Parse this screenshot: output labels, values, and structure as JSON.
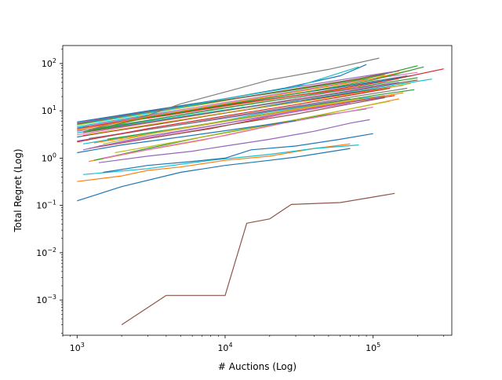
{
  "chart_data": {
    "type": "line",
    "title": "",
    "xlabel": "# Auctions (Log)",
    "ylabel": "Total Regret (Log)",
    "xscale": "log",
    "yscale": "log",
    "xlim": [
      800,
      340000
    ],
    "ylim": [
      0.00018,
      240
    ],
    "grid": false,
    "legend": "none",
    "x_ticks": [
      {
        "value": 1000,
        "base": "10",
        "exp": "3"
      },
      {
        "value": 10000,
        "base": "10",
        "exp": "4"
      },
      {
        "value": 100000,
        "base": "10",
        "exp": "5"
      }
    ],
    "y_ticks": [
      {
        "value": 0.001,
        "base": "10",
        "exp": "−3"
      },
      {
        "value": 0.01,
        "base": "10",
        "exp": "−2"
      },
      {
        "value": 0.1,
        "base": "10",
        "exp": "−1"
      },
      {
        "value": 1,
        "base": "10",
        "exp": "0"
      },
      {
        "value": 10,
        "base": "10",
        "exp": "1"
      },
      {
        "value": 100,
        "base": "10",
        "exp": "2"
      }
    ],
    "colors": [
      "#1f77b4",
      "#ff7f0e",
      "#2ca02c",
      "#d62728",
      "#9467bd",
      "#8c564b",
      "#e377c2",
      "#7f7f7f",
      "#bcbd22",
      "#17becf"
    ],
    "series": [
      {
        "color": "#8c564b",
        "x": [
          2000,
          4000,
          10000,
          14000,
          20000,
          28000,
          60000,
          100000,
          140000
        ],
        "y": [
          0.0003,
          0.00125,
          0.00125,
          0.042,
          0.052,
          0.105,
          0.115,
          0.15,
          0.18
        ]
      },
      {
        "color": "#1f77b4",
        "x": [
          1000,
          2000,
          5000,
          10000,
          20000,
          30000,
          70000
        ],
        "y": [
          0.125,
          0.25,
          0.5,
          0.7,
          0.9,
          1.05,
          1.6
        ]
      },
      {
        "color": "#ff7f0e",
        "x": [
          1000,
          2000,
          3000,
          5000,
          10000,
          20000,
          40000,
          70000
        ],
        "y": [
          0.32,
          0.42,
          0.55,
          0.65,
          0.9,
          1.1,
          1.6,
          2.0
        ]
      },
      {
        "color": "#17becf",
        "x": [
          1100,
          3000,
          8000,
          20000,
          40000,
          80000
        ],
        "y": [
          0.45,
          0.6,
          0.9,
          1.2,
          1.6,
          1.9
        ]
      },
      {
        "color": "#1f77b4",
        "x": [
          1500,
          3000,
          6000,
          10000,
          15000,
          30000,
          60000,
          100000
        ],
        "y": [
          0.5,
          0.7,
          0.85,
          1.0,
          1.5,
          1.8,
          2.5,
          3.3
        ]
      },
      {
        "color": "#9467bd",
        "x": [
          1400,
          3000,
          6000,
          10000,
          20000,
          40000,
          70000,
          95000
        ],
        "y": [
          0.8,
          1.1,
          1.4,
          1.8,
          2.5,
          3.7,
          5.5,
          6.5
        ]
      },
      {
        "color": "#ff7f0e",
        "x": [
          1200,
          3000,
          7000,
          15000,
          35000,
          80000,
          150000
        ],
        "y": [
          0.85,
          1.5,
          2.4,
          4.0,
          7.0,
          12.0,
          18.0
        ]
      },
      {
        "color": "#2ca02c",
        "x": [
          1300,
          3000,
          7000,
          15000,
          40000,
          90000
        ],
        "y": [
          0.9,
          1.6,
          2.8,
          4.3,
          7.5,
          11.0
        ]
      },
      {
        "color": "#e377c2",
        "x": [
          1500,
          4000,
          10000,
          25000,
          60000,
          100000
        ],
        "y": [
          1.0,
          1.8,
          3.0,
          5.5,
          9.0,
          12.0
        ]
      },
      {
        "color": "#bcbd22",
        "x": [
          1800,
          5000,
          12000,
          30000,
          70000,
          130000
        ],
        "y": [
          1.3,
          2.3,
          3.9,
          6.5,
          11.0,
          16.0
        ]
      },
      {
        "color": "#1f77b4",
        "x": [
          1000,
          2000,
          5000,
          10000,
          20000,
          30000
        ],
        "y": [
          1.3,
          1.9,
          2.8,
          3.8,
          5.2,
          6.2
        ]
      },
      {
        "color": "#d62728",
        "x": [
          1200,
          3000,
          8000,
          20000,
          50000,
          100000,
          140000
        ],
        "y": [
          1.6,
          2.6,
          4.2,
          7.5,
          13.0,
          18.0,
          21.0
        ]
      },
      {
        "color": "#8c564b",
        "x": [
          1400,
          4000,
          10000,
          30000,
          70000,
          120000
        ],
        "y": [
          1.8,
          3.0,
          4.9,
          8.5,
          14.0,
          19.0
        ]
      },
      {
        "color": "#17becf",
        "x": [
          1100,
          3000,
          8000,
          20000,
          60000,
          120000
        ],
        "y": [
          2.0,
          3.4,
          5.5,
          9.5,
          16.0,
          21.0
        ]
      },
      {
        "color": "#ff7f0e",
        "x": [
          1300,
          4000,
          10000,
          30000,
          80000,
          160000
        ],
        "y": [
          2.1,
          3.7,
          6.0,
          10.5,
          17.0,
          24.0
        ]
      },
      {
        "color": "#9467bd",
        "x": [
          1000,
          3000,
          10000,
          30000,
          70000
        ],
        "y": [
          2.3,
          4.0,
          7.0,
          12.0,
          18.0
        ]
      },
      {
        "color": "#2ca02c",
        "x": [
          1600,
          5000,
          15000,
          40000,
          100000,
          190000
        ],
        "y": [
          2.5,
          4.3,
          7.5,
          13.0,
          21.0,
          28.0
        ]
      },
      {
        "color": "#7f7f7f",
        "x": [
          1200,
          4000,
          12000,
          35000,
          90000,
          170000
        ],
        "y": [
          2.6,
          4.6,
          8.0,
          13.5,
          22.0,
          30.0
        ]
      },
      {
        "color": "#1f77b4",
        "x": [
          1000,
          3000,
          9000,
          25000,
          70000,
          140000
        ],
        "y": [
          2.8,
          5.0,
          8.5,
          14.5,
          24.0,
          33.0
        ]
      },
      {
        "color": "#d62728",
        "x": [
          1100,
          3500,
          10000,
          30000,
          80000,
          160000
        ],
        "y": [
          3.0,
          5.2,
          9.0,
          15.0,
          25.0,
          35.0
        ]
      },
      {
        "color": "#e377c2",
        "x": [
          1000,
          3000,
          8000,
          20000,
          50000,
          100000
        ],
        "y": [
          3.1,
          5.5,
          9.0,
          14.5,
          24.0,
          33.0
        ]
      },
      {
        "color": "#bcbd22",
        "x": [
          1200,
          4000,
          12000,
          40000,
          100000,
          180000
        ],
        "y": [
          3.2,
          5.8,
          10.0,
          17.0,
          27.0,
          38.0
        ]
      },
      {
        "color": "#17becf",
        "x": [
          1000,
          3000,
          9000,
          30000,
          80000,
          250000
        ],
        "y": [
          3.4,
          6.0,
          10.0,
          17.0,
          27.0,
          47.0
        ]
      },
      {
        "color": "#8c564b",
        "x": [
          1100,
          4000,
          12000,
          35000,
          90000,
          200000
        ],
        "y": [
          3.5,
          6.5,
          11.0,
          18.5,
          30.0,
          45.0
        ]
      },
      {
        "color": "#9467bd",
        "x": [
          1000,
          3000,
          8000,
          25000,
          70000,
          150000
        ],
        "y": [
          3.7,
          6.3,
          10.5,
          18.0,
          29.0,
          40.0
        ]
      },
      {
        "color": "#2ca02c",
        "x": [
          1200,
          3500,
          10000,
          30000,
          80000,
          200000
        ],
        "y": [
          3.8,
          6.8,
          11.5,
          19.5,
          32.0,
          50.0
        ]
      },
      {
        "color": "#ff7f0e",
        "x": [
          1000,
          3000,
          10000,
          30000,
          80000
        ],
        "y": [
          4.0,
          7.0,
          12.5,
          21.0,
          32.0
        ]
      },
      {
        "color": "#7f7f7f",
        "x": [
          1000,
          3000,
          9000,
          25000,
          70000,
          170000
        ],
        "y": [
          4.2,
          7.4,
          12.5,
          21.0,
          35.0,
          55.0
        ]
      },
      {
        "color": "#1f77b4",
        "x": [
          1000,
          3000,
          10000,
          30000,
          90000,
          180000
        ],
        "y": [
          4.3,
          7.6,
          13.5,
          23.0,
          38.0,
          55.0
        ]
      },
      {
        "color": "#d62728",
        "x": [
          1100,
          4000,
          12000,
          40000,
          120000,
          300000
        ],
        "y": [
          4.5,
          8.0,
          14.0,
          24.0,
          42.0,
          77.0
        ]
      },
      {
        "color": "#17becf",
        "x": [
          1000,
          3000,
          9000,
          25000,
          70000,
          150000
        ],
        "y": [
          4.6,
          8.2,
          14.0,
          24.0,
          40.0,
          58.0
        ]
      },
      {
        "color": "#e377c2",
        "x": [
          1200,
          3500,
          10000,
          30000,
          80000,
          200000
        ],
        "y": [
          4.8,
          8.6,
          15.0,
          26.0,
          43.0,
          65.0
        ]
      },
      {
        "color": "#bcbd22",
        "x": [
          1000,
          3000,
          8000,
          20000,
          50000,
          120000
        ],
        "y": [
          5.0,
          8.8,
          14.5,
          24.0,
          38.0,
          57.0
        ]
      },
      {
        "color": "#2ca02c",
        "x": [
          1000,
          3000,
          9000,
          30000,
          90000,
          200000
        ],
        "y": [
          5.2,
          9.2,
          16.0,
          28.0,
          48.0,
          90.0
        ]
      },
      {
        "color": "#8c564b",
        "x": [
          1000,
          3000,
          10000,
          30000,
          80000,
          150000
        ],
        "y": [
          5.4,
          9.6,
          17.0,
          29.0,
          48.0,
          70.0
        ]
      },
      {
        "color": "#9467bd",
        "x": [
          1000,
          2500,
          7000,
          20000,
          60000,
          140000
        ],
        "y": [
          5.5,
          9.0,
          15.0,
          26.0,
          45.0,
          68.0
        ]
      },
      {
        "color": "#1f77b4",
        "x": [
          1000,
          3000,
          9000,
          25000,
          60000,
          90000
        ],
        "y": [
          5.8,
          10.0,
          17.0,
          30.0,
          55.0,
          95.0
        ]
      },
      {
        "color": "#17becf",
        "x": [
          1200,
          4000,
          10000,
          30000,
          80000
        ],
        "y": [
          5.6,
          10.5,
          18.0,
          32.0,
          85.0
        ]
      },
      {
        "color": "#7f7f7f",
        "x": [
          1200,
          3000,
          5000,
          10000,
          20000,
          50000,
          110000
        ],
        "y": [
          4.0,
          8.0,
          14.0,
          25.0,
          45.0,
          75.0,
          130.0
        ]
      },
      {
        "color": "#ff7f0e",
        "x": [
          1000,
          3000,
          10000,
          30000,
          90000,
          180000
        ],
        "y": [
          3.9,
          7.5,
          14.0,
          25.0,
          45.0,
          72.0
        ]
      },
      {
        "color": "#2ca02c",
        "x": [
          1100,
          3000,
          10000,
          35000,
          100000,
          220000
        ],
        "y": [
          3.6,
          7.2,
          13.5,
          25.0,
          45.0,
          85.0
        ]
      },
      {
        "color": "#d62728",
        "x": [
          1000,
          3000,
          10000,
          30000,
          80000,
          130000
        ],
        "y": [
          2.2,
          4.2,
          7.8,
          13.5,
          23.0,
          30.0
        ]
      },
      {
        "color": "#bcbd22",
        "x": [
          1500,
          4000,
          12000,
          30000,
          80000
        ],
        "y": [
          2.0,
          3.8,
          6.8,
          11.0,
          18.0
        ]
      },
      {
        "color": "#e377c2",
        "x": [
          1300,
          4000,
          10000,
          30000,
          70000
        ],
        "y": [
          1.7,
          3.2,
          5.4,
          9.5,
          14.5
        ]
      },
      {
        "color": "#9467bd",
        "x": [
          1100,
          3000,
          8000,
          20000,
          50000,
          120000
        ],
        "y": [
          1.5,
          2.9,
          4.8,
          8.0,
          13.0,
          20.0
        ]
      }
    ]
  }
}
